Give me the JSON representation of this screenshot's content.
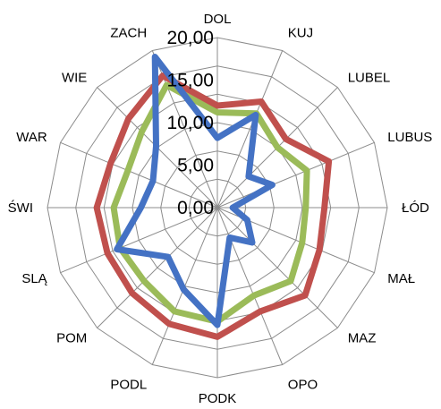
{
  "chart_data": {
    "type": "radar",
    "categories": [
      "DOL",
      "KUJ",
      "LUBEL",
      "LUBUS",
      "ŁÓD",
      "MAŁ",
      "MAZ",
      "OPO",
      "PODK",
      "PODL",
      "POM",
      "SLĄ",
      "ŚWI",
      "WAR",
      "WIE",
      "ZACH"
    ],
    "tick_labels": [
      "0,00",
      "5,00",
      "10,00",
      "15,00",
      "20,00"
    ],
    "rlim": [
      0,
      20
    ],
    "grid_rings": 6,
    "series": [
      {
        "values": [
          8.2,
          11.8,
          5.2,
          7.0,
          1.8,
          3.8,
          5.8,
          3.8,
          13.8,
          10.4,
          8.2,
          12.8,
          9.0,
          8.2,
          10.2,
          19.2
        ],
        "color": "#4472c4"
      },
      {
        "values": [
          12.0,
          13.5,
          11.4,
          14.2,
          12.6,
          13.0,
          14.6,
          13.2,
          15.2,
          14.8,
          14.2,
          14.0,
          14.2,
          13.6,
          14.8,
          16.8
        ],
        "color": "#c0504d"
      },
      {
        "values": [
          11.2,
          12.0,
          10.0,
          11.4,
          10.4,
          10.8,
          12.2,
          11.2,
          13.4,
          13.2,
          12.2,
          12.4,
          12.2,
          11.4,
          12.6,
          15.6
        ],
        "color": "#9bbb59"
      }
    ]
  }
}
